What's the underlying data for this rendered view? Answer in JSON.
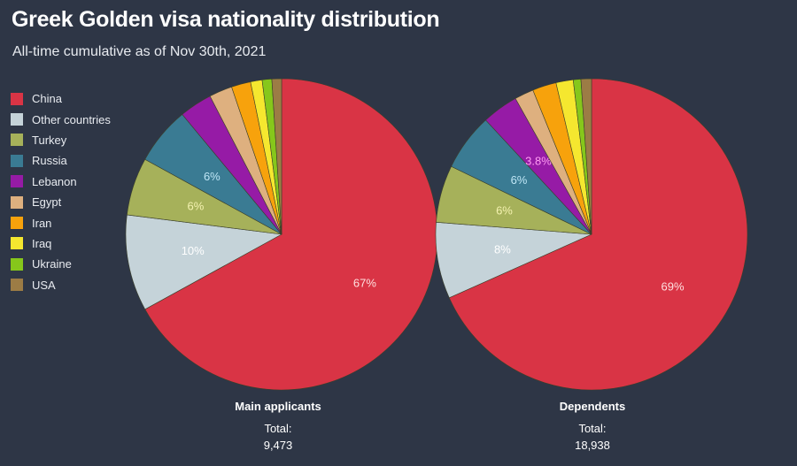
{
  "chart_data": {
    "type": "pie",
    "title": "Greek Golden visa nationality distribution",
    "subtitle": "All-time cumulative as of Nov 30th, 2021",
    "legend_position": "left",
    "categories": [
      "China",
      "Other countries",
      "Turkey",
      "Russia",
      "Lebanon",
      "Egypt",
      "Iran",
      "Iraq",
      "Ukraine",
      "USA"
    ],
    "colors": [
      "#d93445",
      "#c5d3d9",
      "#a6b15a",
      "#3a7b93",
      "#961ba6",
      "#deb07f",
      "#f7a20c",
      "#f5e72f",
      "#86c71b",
      "#9c7c45"
    ],
    "label_colors": [
      "#ffe0e0",
      "#ffffff",
      "#f4f2b0",
      "#bfe6f6",
      "#ff9cf3"
    ],
    "pies": [
      {
        "name": "Main applicants",
        "total_label": "Total:",
        "total": "9,473",
        "values": [
          67,
          10,
          6,
          6,
          3.4,
          2.4,
          2,
          1.2,
          1,
          1
        ],
        "labels": [
          "67%",
          "10%",
          "6%",
          "6%",
          "",
          "",
          "",
          "",
          "",
          ""
        ]
      },
      {
        "name": "Dependents",
        "total_label": "Total:",
        "total": "18,938",
        "values": [
          69,
          8,
          6,
          6,
          3.8,
          2,
          2.5,
          1.8,
          0.8,
          1.1
        ],
        "labels": [
          "69%",
          "8%",
          "6%",
          "6%",
          "3.8%",
          "",
          "",
          "",
          "",
          ""
        ]
      }
    ]
  }
}
